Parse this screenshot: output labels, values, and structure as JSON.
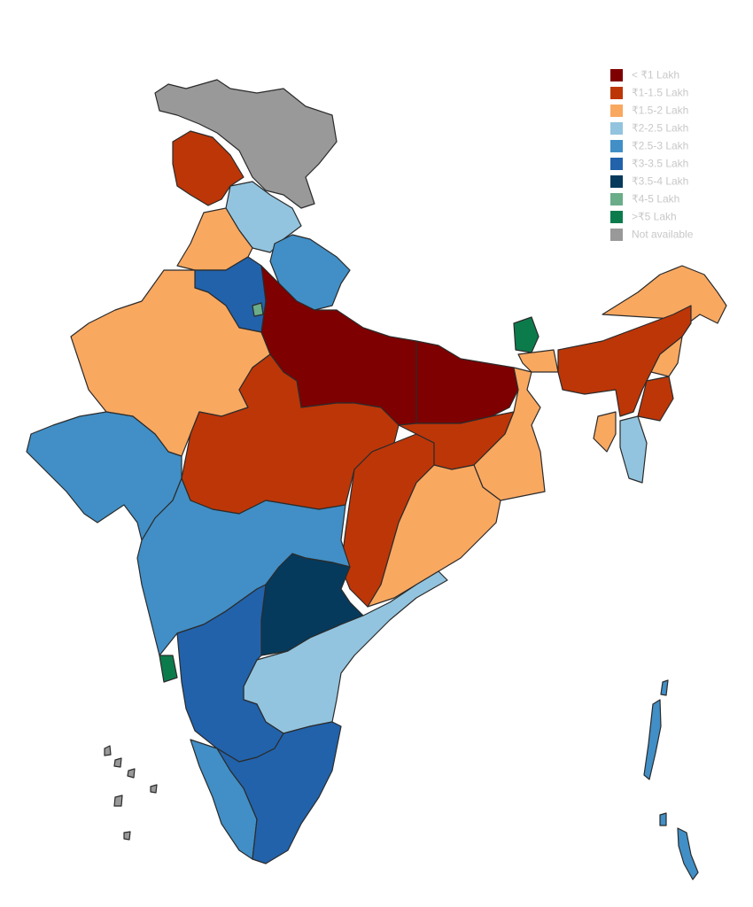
{
  "legend": {
    "items": [
      {
        "label": "< ₹1 Lakh",
        "color": "#7f0000"
      },
      {
        "label": "₹1-1.5 Lakh",
        "color": "#bd3608"
      },
      {
        "label": "₹1.5-2 Lakh",
        "color": "#f9a860"
      },
      {
        "label": "₹2-2.5 Lakh",
        "color": "#92c4df"
      },
      {
        "label": "₹2.5-3 Lakh",
        "color": "#418fc6"
      },
      {
        "label": "₹3-3.5 Lakh",
        "color": "#2162ab"
      },
      {
        "label": "₹3.5-4 Lakh",
        "color": "#053a5c"
      },
      {
        "label": "₹4-5 Lakh",
        "color": "#6aad88"
      },
      {
        "label": ">₹5 Lakh",
        "color": "#0c7b4c"
      },
      {
        "label": "Not available",
        "color": "#999999"
      }
    ]
  }
}
